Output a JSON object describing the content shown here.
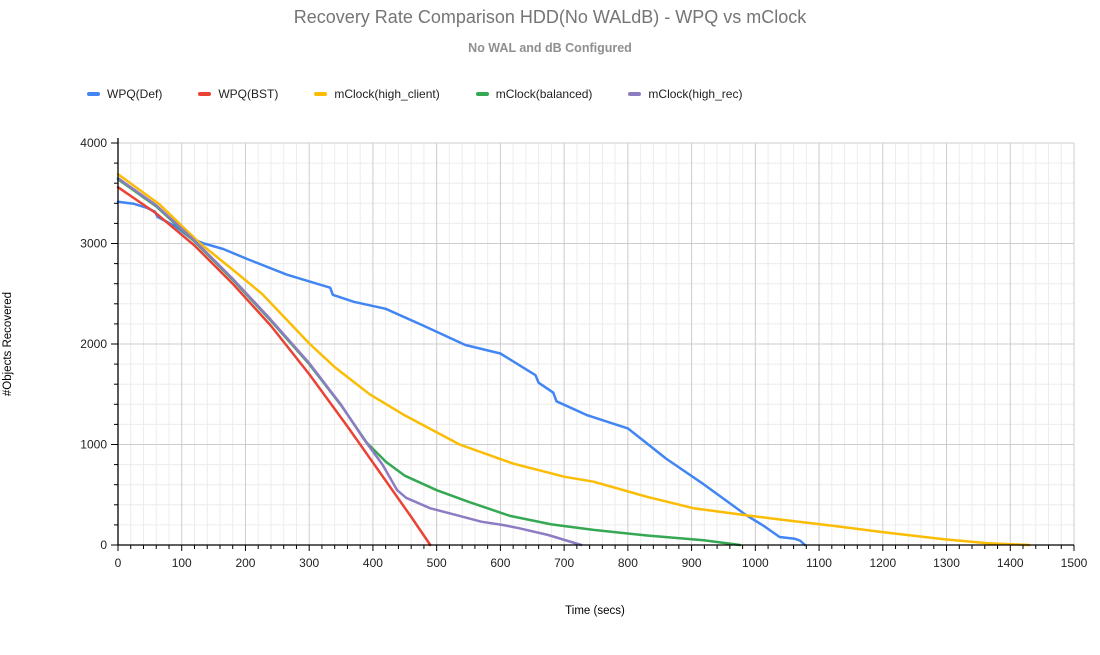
{
  "header": {
    "title": "Recovery Rate Comparison HDD(No WALdB) - WPQ vs mClock",
    "subtitle": "No WAL and dB Configured"
  },
  "chart_data": {
    "type": "line",
    "title": "Recovery Rate Comparison HDD(No WALdB) - WPQ vs mClock",
    "subtitle": "No WAL and dB Configured",
    "xlabel": "Time (secs)",
    "ylabel": "#Objects Recovered",
    "xlim": [
      0,
      1500
    ],
    "ylim": [
      0,
      4000
    ],
    "x_tick_step": 100,
    "y_tick_step": 1000,
    "x_minor_step": 20,
    "y_minor_step": 200,
    "x_ticks": [
      "0",
      "100",
      "200",
      "300",
      "400",
      "500",
      "600",
      "700",
      "800",
      "900",
      "1000",
      "1100",
      "1200",
      "1300",
      "1400",
      "1500"
    ],
    "y_ticks": [
      "0",
      "1000",
      "2000",
      "3000",
      "4000"
    ],
    "grid": true,
    "legend_position": "top-left",
    "layout": {
      "major_grid_color": "#cccccc",
      "minor_grid_color": "#ececec",
      "axis_color": "#000000",
      "tick_label_color": "#222222"
    },
    "series": [
      {
        "name": "WPQ(Def)",
        "color": "#4285F4",
        "points": [
          [
            0,
            3415
          ],
          [
            25,
            3395
          ],
          [
            45,
            3355
          ],
          [
            58,
            3315
          ],
          [
            62,
            3265
          ],
          [
            90,
            3170
          ],
          [
            115,
            3050
          ],
          [
            135,
            3000
          ],
          [
            165,
            2945
          ],
          [
            205,
            2840
          ],
          [
            265,
            2690
          ],
          [
            320,
            2585
          ],
          [
            333,
            2560
          ],
          [
            337,
            2490
          ],
          [
            370,
            2420
          ],
          [
            420,
            2350
          ],
          [
            480,
            2180
          ],
          [
            545,
            1990
          ],
          [
            600,
            1905
          ],
          [
            655,
            1690
          ],
          [
            660,
            1615
          ],
          [
            683,
            1515
          ],
          [
            688,
            1430
          ],
          [
            735,
            1295
          ],
          [
            800,
            1160
          ],
          [
            860,
            860
          ],
          [
            920,
            600
          ],
          [
            985,
            300
          ],
          [
            1012,
            195
          ],
          [
            1038,
            80
          ],
          [
            1062,
            62
          ],
          [
            1070,
            45
          ],
          [
            1078,
            0
          ]
        ]
      },
      {
        "name": "WPQ(BST)",
        "color": "#EA4335",
        "points": [
          [
            0,
            3560
          ],
          [
            60,
            3300
          ],
          [
            120,
            2980
          ],
          [
            180,
            2600
          ],
          [
            240,
            2180
          ],
          [
            300,
            1700
          ],
          [
            360,
            1180
          ],
          [
            420,
            640
          ],
          [
            460,
            280
          ],
          [
            490,
            0
          ]
        ]
      },
      {
        "name": "mClock(high_client)",
        "color": "#FBBC04",
        "points": [
          [
            0,
            3690
          ],
          [
            65,
            3390
          ],
          [
            129,
            3000
          ],
          [
            180,
            2740
          ],
          [
            226,
            2500
          ],
          [
            301,
            2000
          ],
          [
            340,
            1770
          ],
          [
            395,
            1500
          ],
          [
            450,
            1290
          ],
          [
            536,
            1000
          ],
          [
            620,
            810
          ],
          [
            700,
            680
          ],
          [
            746,
            630
          ],
          [
            830,
            480
          ],
          [
            903,
            366
          ],
          [
            984,
            298
          ],
          [
            1050,
            245
          ],
          [
            1123,
            190
          ],
          [
            1200,
            128
          ],
          [
            1296,
            57
          ],
          [
            1365,
            18
          ],
          [
            1430,
            0
          ]
        ]
      },
      {
        "name": "mClock(balanced)",
        "color": "#34A853",
        "points": [
          [
            0,
            3640
          ],
          [
            60,
            3370
          ],
          [
            120,
            3020
          ],
          [
            180,
            2640
          ],
          [
            240,
            2230
          ],
          [
            300,
            1800
          ],
          [
            350,
            1390
          ],
          [
            390,
            1020
          ],
          [
            420,
            830
          ],
          [
            450,
            690
          ],
          [
            500,
            545
          ],
          [
            550,
            430
          ],
          [
            615,
            290
          ],
          [
            680,
            205
          ],
          [
            746,
            150
          ],
          [
            830,
            95
          ],
          [
            919,
            48
          ],
          [
            976,
            0
          ]
        ]
      },
      {
        "name": "mClock(high_rec)",
        "color": "#8E7CC3",
        "points": [
          [
            0,
            3650
          ],
          [
            60,
            3380
          ],
          [
            120,
            3030
          ],
          [
            180,
            2650
          ],
          [
            240,
            2240
          ],
          [
            300,
            1810
          ],
          [
            350,
            1395
          ],
          [
            385,
            1060
          ],
          [
            415,
            800
          ],
          [
            438,
            545
          ],
          [
            452,
            470
          ],
          [
            490,
            365
          ],
          [
            530,
            300
          ],
          [
            570,
            232
          ],
          [
            605,
            198
          ],
          [
            630,
            166
          ],
          [
            675,
            100
          ],
          [
            727,
            0
          ]
        ]
      }
    ]
  }
}
